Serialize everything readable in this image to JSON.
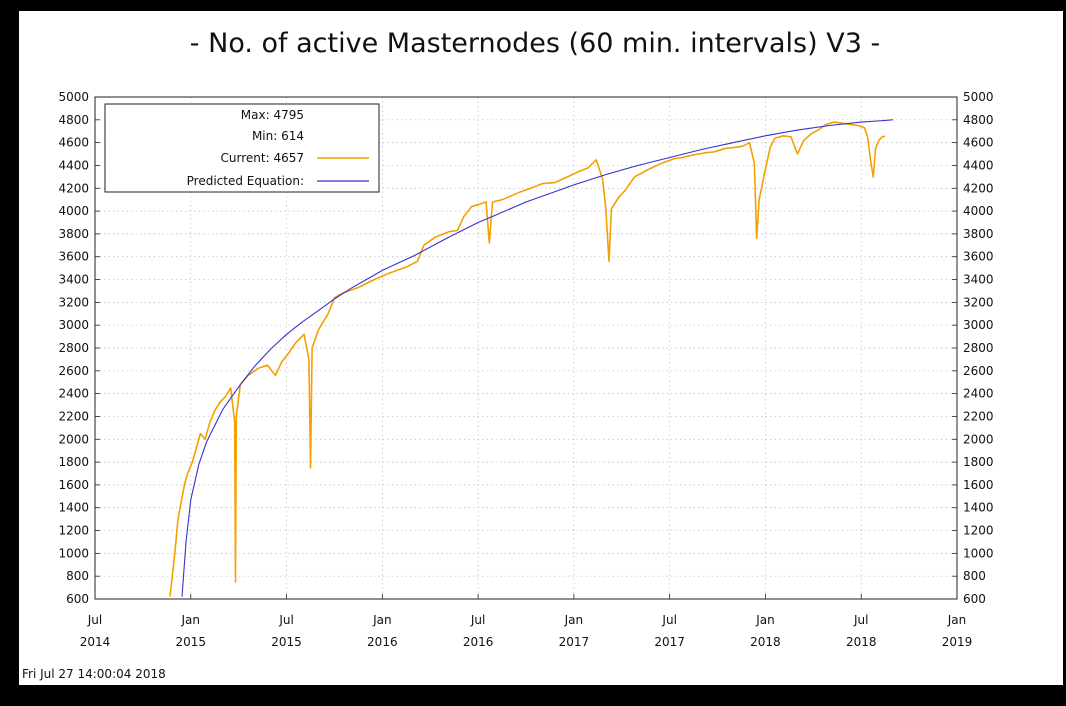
{
  "chart_data": {
    "type": "line",
    "title": "- No. of active Masternodes (60 min. intervals) V3 -",
    "footer": "Fri Jul 27 14:00:04 2018",
    "ylim": [
      600,
      5000
    ],
    "yticks": [
      600,
      800,
      1000,
      1200,
      1400,
      1600,
      1800,
      2000,
      2200,
      2400,
      2600,
      2800,
      3000,
      3200,
      3400,
      3600,
      3800,
      4000,
      4200,
      4400,
      4600,
      4800,
      5000
    ],
    "xticks": [
      {
        "month": "Jul",
        "year": "2014",
        "t": 0
      },
      {
        "month": "Jan",
        "year": "2015",
        "t": 6
      },
      {
        "month": "Jul",
        "year": "2015",
        "t": 12
      },
      {
        "month": "Jan",
        "year": "2016",
        "t": 18
      },
      {
        "month": "Jul",
        "year": "2016",
        "t": 24
      },
      {
        "month": "Jan",
        "year": "2017",
        "t": 30
      },
      {
        "month": "Jul",
        "year": "2017",
        "t": 36
      },
      {
        "month": "Jan",
        "year": "2018",
        "t": 42
      },
      {
        "month": "Jul",
        "year": "2018",
        "t": 48
      },
      {
        "month": "Jan",
        "year": "2019",
        "t": 54
      }
    ],
    "grid": true,
    "legend": {
      "position": "top-left",
      "max": "Max: 4795",
      "min": "Min: 614",
      "current": "Current: 4657",
      "predicted": "Predicted Equation:"
    },
    "series": [
      {
        "name": "Current",
        "color": "#f5a000",
        "points": [
          [
            4.7,
            620
          ],
          [
            5.0,
            1000
          ],
          [
            5.2,
            1300
          ],
          [
            5.4,
            1450
          ],
          [
            5.6,
            1600
          ],
          [
            5.8,
            1700
          ],
          [
            6.1,
            1800
          ],
          [
            6.4,
            1950
          ],
          [
            6.6,
            2050
          ],
          [
            6.9,
            2000
          ],
          [
            7.2,
            2150
          ],
          [
            7.5,
            2250
          ],
          [
            7.8,
            2320
          ],
          [
            8.2,
            2380
          ],
          [
            8.5,
            2450
          ],
          [
            8.75,
            2150
          ],
          [
            8.8,
            750
          ],
          [
            8.85,
            2200
          ],
          [
            9.1,
            2480
          ],
          [
            9.6,
            2560
          ],
          [
            10.2,
            2620
          ],
          [
            10.8,
            2650
          ],
          [
            11.3,
            2560
          ],
          [
            11.7,
            2680
          ],
          [
            12.1,
            2750
          ],
          [
            12.6,
            2850
          ],
          [
            13.1,
            2920
          ],
          [
            13.4,
            2700
          ],
          [
            13.5,
            1750
          ],
          [
            13.6,
            2800
          ],
          [
            14.0,
            2960
          ],
          [
            14.6,
            3100
          ],
          [
            15.0,
            3240
          ],
          [
            15.5,
            3280
          ],
          [
            16.5,
            3330
          ],
          [
            17.5,
            3400
          ],
          [
            18.5,
            3460
          ],
          [
            19.5,
            3510
          ],
          [
            20.2,
            3560
          ],
          [
            20.6,
            3700
          ],
          [
            21.3,
            3770
          ],
          [
            22.2,
            3820
          ],
          [
            22.7,
            3830
          ],
          [
            23.1,
            3950
          ],
          [
            23.6,
            4040
          ],
          [
            24.1,
            4060
          ],
          [
            24.5,
            4080
          ],
          [
            24.7,
            3720
          ],
          [
            24.9,
            4080
          ],
          [
            25.5,
            4100
          ],
          [
            26.5,
            4160
          ],
          [
            27.3,
            4200
          ],
          [
            28.0,
            4240
          ],
          [
            28.8,
            4250
          ],
          [
            29.6,
            4300
          ],
          [
            30.2,
            4340
          ],
          [
            30.9,
            4380
          ],
          [
            31.4,
            4450
          ],
          [
            31.8,
            4280
          ],
          [
            32.0,
            4020
          ],
          [
            32.2,
            3560
          ],
          [
            32.35,
            4020
          ],
          [
            32.8,
            4120
          ],
          [
            33.2,
            4180
          ],
          [
            33.8,
            4300
          ],
          [
            34.6,
            4360
          ],
          [
            35.5,
            4420
          ],
          [
            36.3,
            4460
          ],
          [
            36.8,
            4470
          ],
          [
            37.4,
            4490
          ],
          [
            38.2,
            4510
          ],
          [
            38.8,
            4520
          ],
          [
            39.5,
            4550
          ],
          [
            40.2,
            4560
          ],
          [
            40.6,
            4570
          ],
          [
            41.0,
            4600
          ],
          [
            41.3,
            4420
          ],
          [
            41.45,
            3760
          ],
          [
            41.6,
            4100
          ],
          [
            41.9,
            4300
          ],
          [
            42.3,
            4560
          ],
          [
            42.6,
            4640
          ],
          [
            43.1,
            4660
          ],
          [
            43.6,
            4650
          ],
          [
            44.0,
            4500
          ],
          [
            44.4,
            4620
          ],
          [
            44.9,
            4680
          ],
          [
            45.3,
            4710
          ],
          [
            45.8,
            4760
          ],
          [
            46.3,
            4780
          ],
          [
            46.8,
            4770
          ],
          [
            47.3,
            4760
          ],
          [
            47.8,
            4750
          ],
          [
            48.2,
            4730
          ],
          [
            48.4,
            4650
          ],
          [
            48.6,
            4430
          ],
          [
            48.75,
            4300
          ],
          [
            48.9,
            4550
          ],
          [
            49.1,
            4620
          ],
          [
            49.3,
            4650
          ],
          [
            49.5,
            4657
          ]
        ]
      },
      {
        "name": "Predicted Equation",
        "color": "#3333cc",
        "points": [
          [
            5.45,
            620
          ],
          [
            5.7,
            1100
          ],
          [
            6.0,
            1470
          ],
          [
            6.5,
            1780
          ],
          [
            7.0,
            1980
          ],
          [
            8.0,
            2260
          ],
          [
            9.0,
            2460
          ],
          [
            10.0,
            2640
          ],
          [
            11.0,
            2790
          ],
          [
            12.0,
            2920
          ],
          [
            13.0,
            3030
          ],
          [
            14.0,
            3130
          ],
          [
            15.0,
            3230
          ],
          [
            16.0,
            3320
          ],
          [
            17.0,
            3400
          ],
          [
            18.0,
            3480
          ],
          [
            20.0,
            3610
          ],
          [
            22.0,
            3760
          ],
          [
            24.0,
            3900
          ],
          [
            25.0,
            3960
          ],
          [
            27.0,
            4080
          ],
          [
            29.0,
            4180
          ],
          [
            30.0,
            4230
          ],
          [
            32.0,
            4320
          ],
          [
            34.0,
            4400
          ],
          [
            36.0,
            4470
          ],
          [
            38.0,
            4540
          ],
          [
            40.0,
            4600
          ],
          [
            42.0,
            4660
          ],
          [
            44.0,
            4710
          ],
          [
            46.0,
            4750
          ],
          [
            48.0,
            4780
          ],
          [
            49.0,
            4790
          ],
          [
            50.0,
            4800
          ]
        ]
      }
    ]
  }
}
